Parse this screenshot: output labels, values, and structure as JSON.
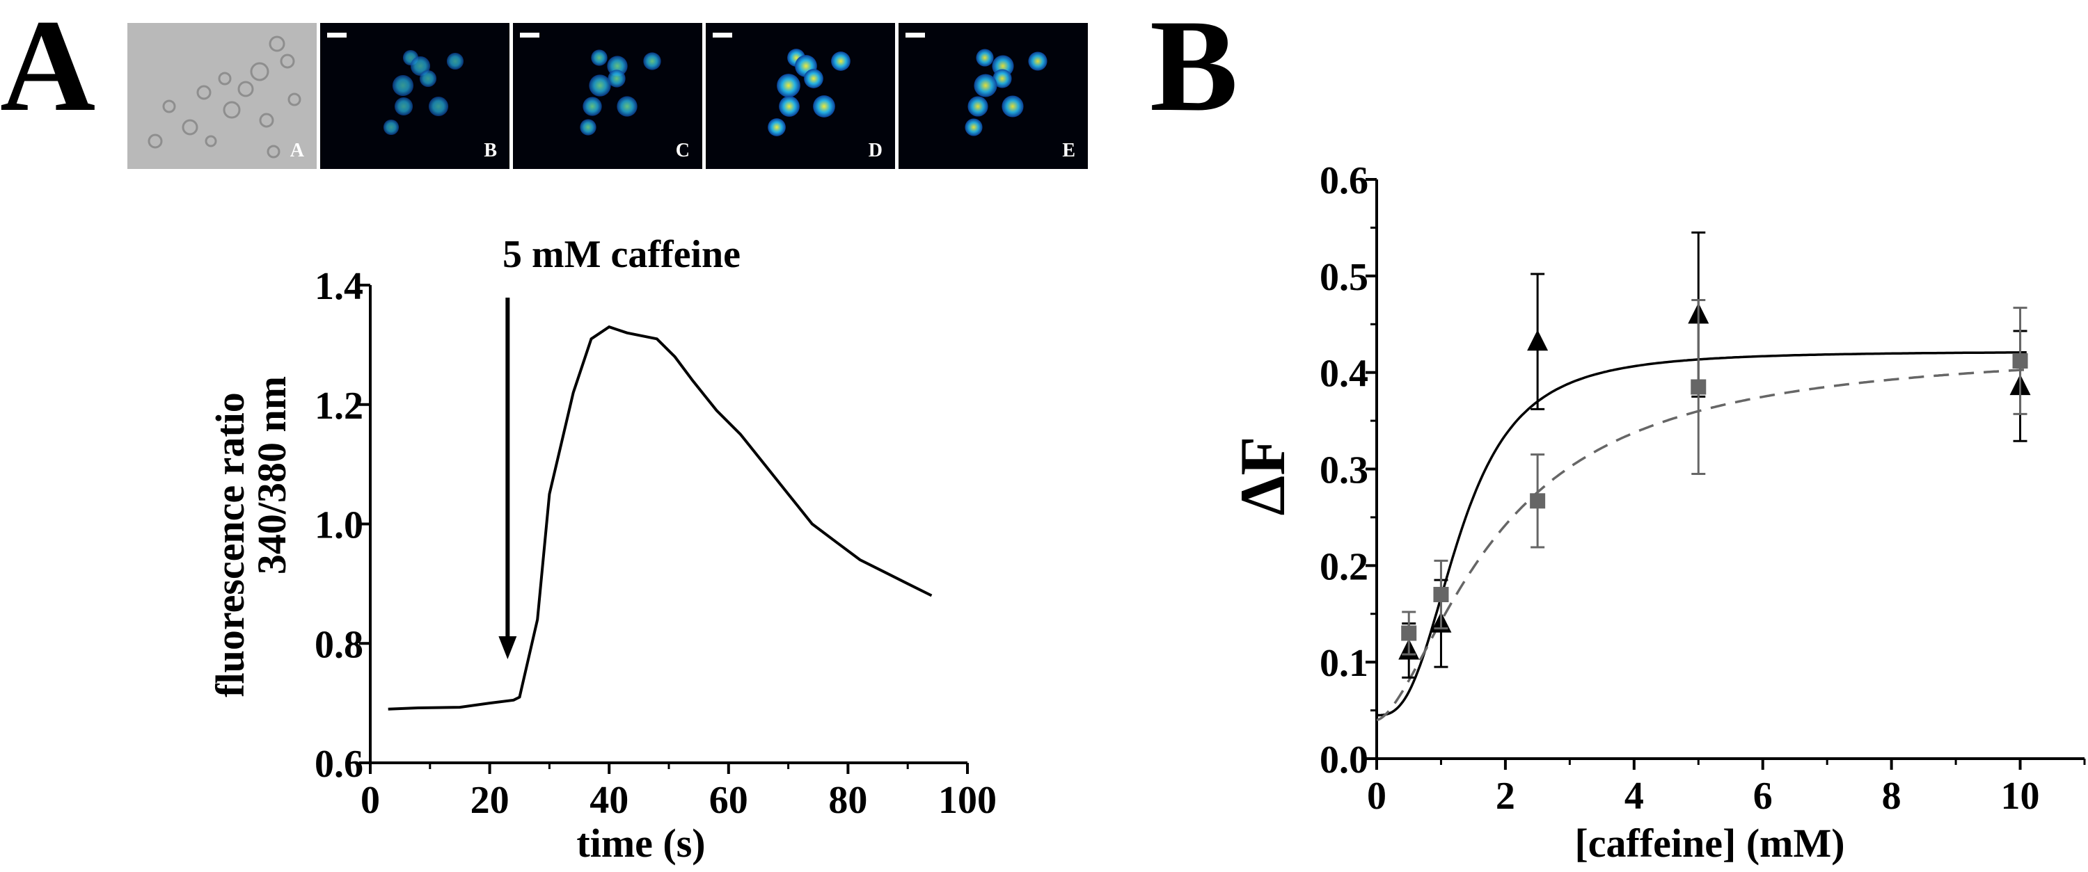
{
  "panels": {
    "left_letter": "A",
    "right_letter": "B"
  },
  "micrographs": [
    {
      "label": "A",
      "type": "brightfield"
    },
    {
      "label": "B",
      "type": "fluorescence",
      "intensity": 0.35
    },
    {
      "label": "C",
      "type": "fluorescence",
      "intensity": 0.55
    },
    {
      "label": "D",
      "type": "fluorescence",
      "intensity": 0.95
    },
    {
      "label": "E",
      "type": "fluorescence",
      "intensity": 0.85
    }
  ],
  "chart_data": [
    {
      "type": "line",
      "annotation": "5 mM caffeine",
      "annotation_x": 23,
      "xlabel": "time (s)",
      "ylabel": [
        "fluorescence ratio",
        "340/380 nm"
      ],
      "xlim": [
        0,
        100
      ],
      "ylim": [
        0.6,
        1.4
      ],
      "xticks": [
        0,
        20,
        40,
        60,
        80,
        100
      ],
      "xtick_labels": [
        "0",
        "20",
        "40",
        "60",
        "80",
        "100"
      ],
      "yticks": [
        0.6,
        0.8,
        1.0,
        1.2,
        1.4
      ],
      "ytick_labels": [
        "0.6",
        "0.8",
        "1.0",
        "1.2",
        "1.4"
      ],
      "series": [
        {
          "x": [
            3,
            8,
            15,
            20,
            24,
            25,
            28,
            30,
            34,
            37,
            40,
            43,
            48,
            51,
            54,
            58,
            62,
            66,
            70,
            74,
            78,
            82,
            86,
            90,
            94
          ],
          "y": [
            0.69,
            0.692,
            0.693,
            0.7,
            0.705,
            0.71,
            0.84,
            1.05,
            1.22,
            1.31,
            1.33,
            1.32,
            1.31,
            1.28,
            1.24,
            1.19,
            1.15,
            1.1,
            1.05,
            1.0,
            0.97,
            0.94,
            0.92,
            0.9,
            0.88
          ]
        }
      ]
    },
    {
      "type": "scatter",
      "xlabel": "[caffeine] (mM)",
      "ylabel": "ΔF",
      "xlim": [
        0,
        11
      ],
      "ylim": [
        0,
        0.6
      ],
      "xticks": [
        0,
        2,
        4,
        6,
        8,
        10
      ],
      "xtick_labels": [
        "0",
        "2",
        "4",
        "6",
        "8",
        "10"
      ],
      "yticks": [
        0.0,
        0.1,
        0.2,
        0.3,
        0.4,
        0.5,
        0.6
      ],
      "ytick_labels": [
        "0.0",
        "0.1",
        "0.2",
        "0.3",
        "0.4",
        "0.5",
        "0.6"
      ],
      "series": [
        {
          "marker": "triangle",
          "color": "#000000",
          "x": [
            0.5,
            1.0,
            2.5,
            5.0,
            10.0
          ],
          "y": [
            0.112,
            0.14,
            0.432,
            0.46,
            0.386
          ],
          "err": [
            0.028,
            0.045,
            0.07,
            0.085,
            0.057
          ]
        },
        {
          "marker": "square",
          "color": "#666666",
          "x": [
            0.5,
            1.0,
            2.5,
            5.0,
            10.0
          ],
          "y": [
            0.13,
            0.17,
            0.267,
            0.385,
            0.412
          ],
          "err": [
            0.022,
            0.035,
            0.048,
            0.09,
            0.055
          ]
        }
      ],
      "fits": [
        {
          "style": "solid",
          "color": "#000000",
          "ymin": 0.045,
          "ymax": 0.422,
          "k": 1.3,
          "n": 2.8
        },
        {
          "style": "dashed",
          "color": "#666666",
          "ymin": 0.04,
          "ymax": 0.428,
          "k": 1.9,
          "n": 1.6
        }
      ]
    }
  ]
}
